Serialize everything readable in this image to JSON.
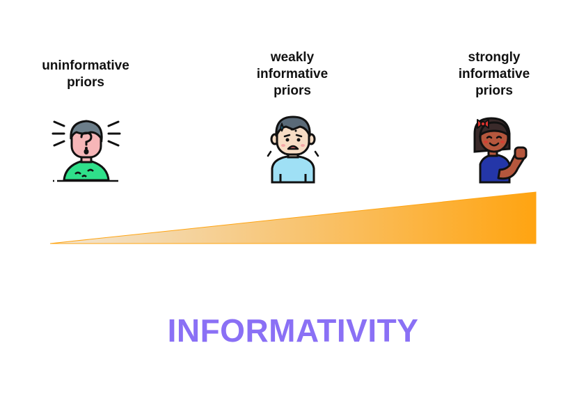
{
  "levels": [
    {
      "label": "uninformative\npriors",
      "figure": "confused-person-icon"
    },
    {
      "label": "weakly\ninformative\npriors",
      "figure": "worried-person-icon"
    },
    {
      "label": "strongly\ninformative\npriors",
      "figure": "confident-person-icon"
    }
  ],
  "axis": {
    "title": "INFORMATIVITY",
    "title_color": "#8a70f5",
    "gradient_start": "#f1e6d6",
    "gradient_end": "#ffa411"
  }
}
